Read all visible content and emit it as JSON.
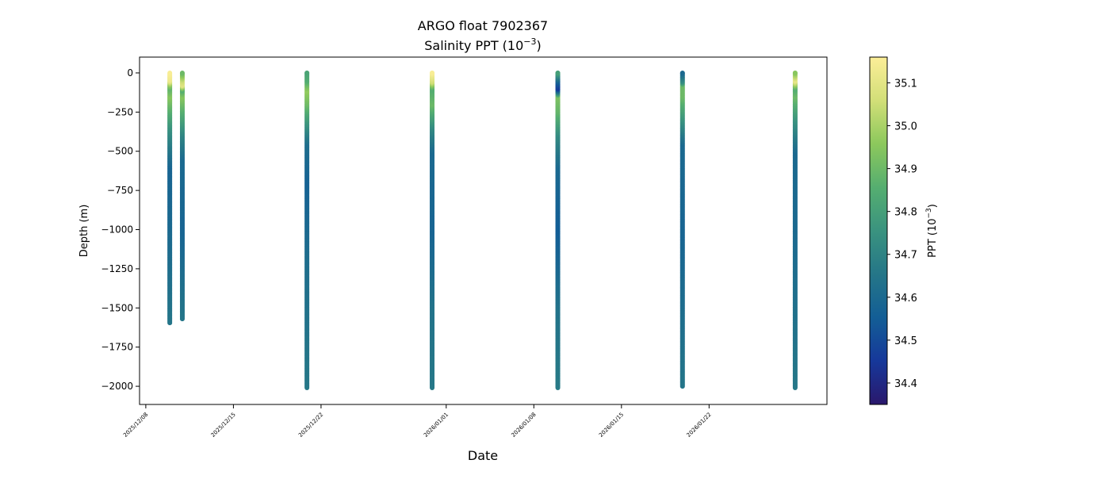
{
  "chart_data": {
    "type": "scatter",
    "title": "ARGO float 7902367",
    "subtitle": "Salinity PPT (10",
    "subtitle_sup": "−3",
    "subtitle_end": ")",
    "xlabel": "Date",
    "ylabel": "Depth (m)",
    "xlim": [
      "2025-12-07T12:00",
      "2026-01-31T10:00"
    ],
    "ylim": [
      -2116,
      101
    ],
    "yticks": [
      0,
      -250,
      -500,
      -750,
      -1000,
      -1250,
      -1500,
      -1750,
      -2000
    ],
    "ytick_labels": [
      "0",
      "−250",
      "−500",
      "−750",
      "−1000",
      "−1250",
      "−1500",
      "−1750",
      "−2000"
    ],
    "xticks": [
      "2025-12-08",
      "2025-12-15",
      "2025-12-22",
      "2026-01-01",
      "2026-01-08",
      "2026-01-15",
      "2026-01-22"
    ],
    "xtick_labels": [
      "2025/12/08",
      "2025/12/15",
      "2025/12/22",
      "2026/01/01",
      "2026/01/08",
      "2026/01/15",
      "2026/01/22"
    ],
    "grid": false,
    "colorbar": {
      "label": "PPT (10",
      "label_sup": "−3",
      "label_end": ")",
      "colormap": "haline",
      "range": [
        34.35,
        35.16
      ],
      "ticks": [
        34.4,
        34.5,
        34.6,
        34.7,
        34.8,
        34.9,
        35.0,
        35.1
      ],
      "tick_labels": [
        "34.4",
        "34.5",
        "34.6",
        "34.7",
        "34.8",
        "34.9",
        "35.0",
        "35.1"
      ],
      "colors": [
        "#2a186c",
        "#16389a",
        "#135e96",
        "#257688",
        "#3a937f",
        "#55ae70",
        "#8cc85c",
        "#d2df78",
        "#fcee98"
      ]
    },
    "profiles": [
      {
        "date": "2025-12-09T22:00",
        "points": [
          [
            0,
            35.15
          ],
          [
            -50,
            35.12
          ],
          [
            -80,
            34.95
          ],
          [
            -100,
            34.88
          ],
          [
            -150,
            34.95
          ],
          [
            -250,
            34.85
          ],
          [
            -350,
            34.75
          ],
          [
            -450,
            34.68
          ],
          [
            -600,
            34.58
          ],
          [
            -1000,
            34.6
          ],
          [
            -1595,
            34.65
          ]
        ]
      },
      {
        "date": "2025-12-10T22:00",
        "points": [
          [
            0,
            34.9
          ],
          [
            -50,
            35.05
          ],
          [
            -80,
            35.1
          ],
          [
            -110,
            34.85
          ],
          [
            -150,
            34.95
          ],
          [
            -250,
            34.85
          ],
          [
            -400,
            34.7
          ],
          [
            -550,
            34.6
          ],
          [
            -1000,
            34.58
          ],
          [
            -1570,
            34.65
          ]
        ]
      },
      {
        "date": "2025-12-20T21:00",
        "points": [
          [
            0,
            34.82
          ],
          [
            -50,
            34.85
          ],
          [
            -110,
            34.97
          ],
          [
            -200,
            34.9
          ],
          [
            -300,
            34.78
          ],
          [
            -450,
            34.62
          ],
          [
            -700,
            34.57
          ],
          [
            -1200,
            34.62
          ],
          [
            -2010,
            34.66
          ]
        ]
      },
      {
        "date": "2025-12-30T21:00",
        "points": [
          [
            0,
            35.15
          ],
          [
            -60,
            35.05
          ],
          [
            -100,
            34.85
          ],
          [
            -200,
            34.9
          ],
          [
            -350,
            34.72
          ],
          [
            -500,
            34.6
          ],
          [
            -1000,
            34.58
          ],
          [
            -1500,
            34.64
          ],
          [
            -2010,
            34.66
          ]
        ]
      },
      {
        "date": "2026-01-09T22:00",
        "points": [
          [
            0,
            34.8
          ],
          [
            -60,
            34.55
          ],
          [
            -100,
            34.45
          ],
          [
            -150,
            34.93
          ],
          [
            -250,
            34.88
          ],
          [
            -400,
            34.72
          ],
          [
            -600,
            34.6
          ],
          [
            -1000,
            34.55
          ],
          [
            -1500,
            34.64
          ],
          [
            -2010,
            34.67
          ]
        ]
      },
      {
        "date": "2026-01-19T21:00",
        "points": [
          [
            0,
            34.6
          ],
          [
            -60,
            34.75
          ],
          [
            -80,
            34.9
          ],
          [
            -150,
            34.9
          ],
          [
            -300,
            34.75
          ],
          [
            -450,
            34.6
          ],
          [
            -1000,
            34.58
          ],
          [
            -2000,
            34.65
          ]
        ]
      },
      {
        "date": "2026-01-28T21:00",
        "points": [
          [
            0,
            34.95
          ],
          [
            -50,
            35.12
          ],
          [
            -100,
            34.85
          ],
          [
            -150,
            34.9
          ],
          [
            -300,
            34.75
          ],
          [
            -500,
            34.6
          ],
          [
            -1000,
            34.6
          ],
          [
            -2010,
            34.66
          ]
        ]
      }
    ]
  }
}
